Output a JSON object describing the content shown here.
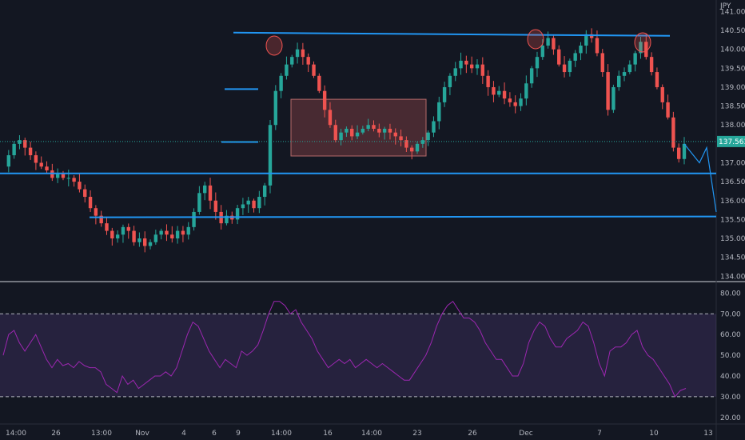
{
  "chart_data": {
    "type": "candlestick",
    "symbol_currency": "JPY",
    "current_price": "137.563",
    "price_axis": {
      "ticks": [
        "141.000",
        "140.500",
        "140.000",
        "139.500",
        "139.000",
        "138.500",
        "138.000",
        "137.500",
        "137.000",
        "136.500",
        "136.000",
        "135.500",
        "135.000",
        "134.500",
        "134.000"
      ],
      "ylim": [
        133.9,
        141.2
      ]
    },
    "rsi_axis": {
      "ticks": [
        "80.00",
        "70.00",
        "60.00",
        "50.00",
        "40.00",
        "30.00",
        "20.00"
      ],
      "ylim": [
        18,
        84
      ],
      "overbought": 70,
      "oversold": 30
    },
    "time_axis": {
      "ticks": [
        "14:00",
        "26",
        "13:00",
        "Nov",
        "4",
        "6",
        "9",
        "14:00",
        "16",
        "14:00",
        "23",
        "26",
        "Dec",
        "7",
        "10",
        "13"
      ]
    },
    "levels": {
      "resistance_top": 140.4,
      "support_1": 136.72,
      "support_2": 135.58,
      "step_1": 138.95,
      "step_2": 137.55
    },
    "range_box": {
      "price_high": 138.68,
      "price_low": 137.18
    },
    "price_path": [
      136.9,
      137.2,
      137.5,
      137.6,
      137.4,
      137.2,
      137.0,
      136.9,
      136.8,
      136.6,
      136.7,
      136.6,
      136.6,
      136.5,
      136.3,
      136.1,
      135.8,
      135.6,
      135.4,
      135.2,
      135.0,
      135.1,
      135.3,
      135.2,
      134.9,
      135.0,
      134.8,
      134.9,
      135.1,
      135.2,
      135.1,
      135.0,
      135.2,
      135.1,
      135.3,
      135.7,
      136.2,
      136.4,
      136.0,
      135.7,
      135.4,
      135.6,
      135.5,
      135.8,
      135.9,
      136.0,
      135.8,
      136.1,
      136.4,
      138.0,
      138.9,
      139.3,
      139.6,
      139.8,
      140.0,
      139.8,
      139.6,
      139.3,
      138.9,
      138.4,
      138.0,
      137.6,
      137.8,
      137.9,
      137.7,
      137.8,
      137.9,
      138.0,
      137.9,
      137.8,
      137.9,
      137.8,
      137.7,
      137.6,
      137.4,
      137.3,
      137.5,
      137.6,
      137.8,
      138.1,
      138.6,
      139.0,
      139.3,
      139.5,
      139.7,
      139.6,
      139.5,
      139.6,
      139.3,
      139.0,
      138.8,
      138.9,
      138.7,
      138.6,
      138.5,
      138.7,
      139.1,
      139.5,
      139.8,
      140.1,
      140.3,
      140.0,
      139.6,
      139.4,
      139.7,
      139.9,
      140.1,
      140.4,
      140.3,
      139.9,
      139.4,
      138.4,
      139.0,
      139.3,
      139.4,
      139.6,
      139.9,
      140.2,
      139.8,
      139.4,
      139.0,
      138.6,
      138.2,
      137.4,
      137.1,
      137.5
    ],
    "forecast_path": [
      137.5,
      137.0,
      137.4,
      135.7
    ],
    "rsi_path": [
      50,
      60,
      62,
      56,
      52,
      56,
      60,
      54,
      48,
      44,
      48,
      45,
      46,
      44,
      47,
      45,
      44,
      44,
      42,
      36,
      34,
      32,
      40,
      36,
      38,
      34,
      36,
      38,
      40,
      40,
      42,
      40,
      44,
      52,
      60,
      66,
      64,
      58,
      52,
      48,
      44,
      48,
      46,
      44,
      52,
      50,
      52,
      55,
      62,
      70,
      76,
      76,
      74,
      70,
      72,
      66,
      62,
      58,
      52,
      48,
      44,
      46,
      48,
      46,
      48,
      44,
      46,
      48,
      46,
      44,
      46,
      44,
      42,
      40,
      38,
      38,
      42,
      46,
      50,
      56,
      64,
      70,
      74,
      76,
      72,
      68,
      68,
      66,
      62,
      56,
      52,
      48,
      48,
      44,
      40,
      40,
      46,
      56,
      62,
      66,
      64,
      58,
      54,
      54,
      58,
      60,
      62,
      66,
      64,
      56,
      46,
      40,
      52,
      54,
      54,
      56,
      60,
      62,
      54,
      50,
      48,
      44,
      40,
      36,
      30,
      33,
      34
    ]
  }
}
